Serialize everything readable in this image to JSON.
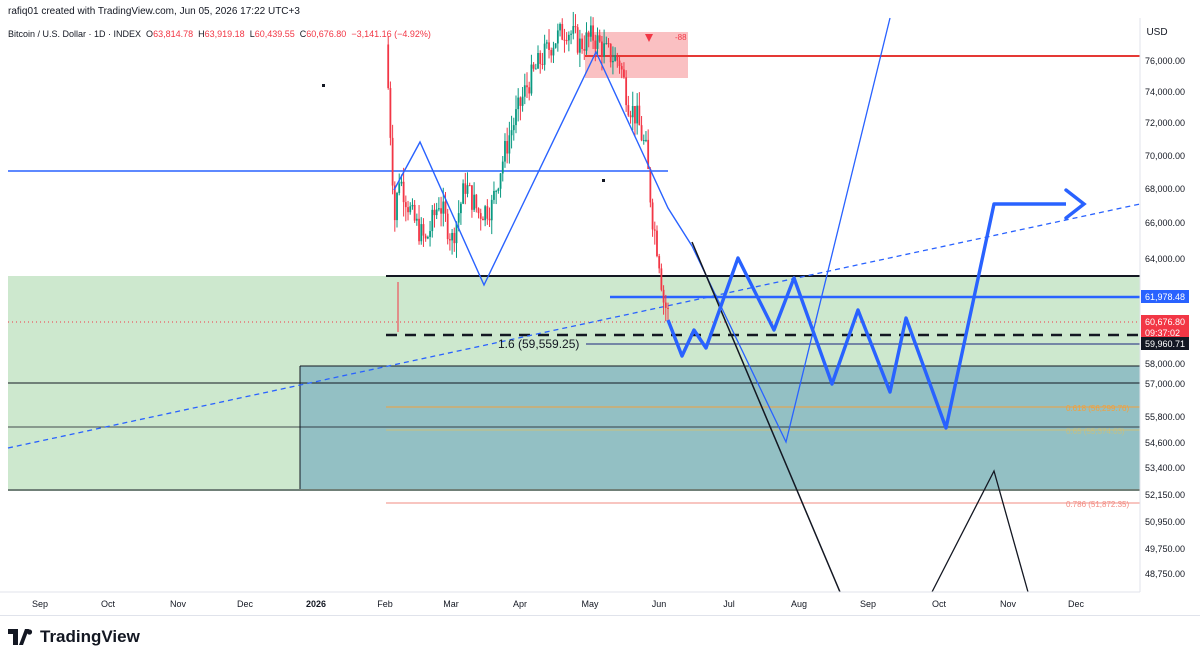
{
  "header": {
    "credit": "rafiq01 created with TradingView.com, Jun 05, 2026 17:22 UTC+3",
    "symbol": "Bitcoin / U.S. Dollar · 1D · INDEX",
    "open_label": "O",
    "open": "63,814.78",
    "high_label": "H",
    "high": "63,919.18",
    "low_label": "L",
    "low": "60,439.55",
    "close_label": "C",
    "close": "60,676.80",
    "change": "−3,141.16 (−4.92%)"
  },
  "price_axis": {
    "currency": "USD",
    "ticks": [
      "76,000.00",
      "74,000.00",
      "72,000.00",
      "70,000.00",
      "68,000.00",
      "66,000.00",
      "64,000.00",
      "58,000.00",
      "57,000.00",
      "55,800.00",
      "54,600.00",
      "53,400.00",
      "52,150.00",
      "50,950.00",
      "49,750.00",
      "48,750.00"
    ]
  },
  "time_axis": {
    "ticks": [
      "Sep",
      "Oct",
      "Nov",
      "Dec",
      "2026",
      "Feb",
      "Mar",
      "Apr",
      "May",
      "Jun",
      "Jul",
      "Aug",
      "Sep",
      "Oct",
      "Nov",
      "Dec"
    ]
  },
  "price_labels": {
    "level_1": "61,978.48",
    "last_price": "60,676.80",
    "countdown": "09:37:02",
    "level_2": "59,960.71"
  },
  "annotations": {
    "fib_ext": "1.6 (59,559.25)",
    "fib_618": "0.618 (56,299.76)",
    "fib_786": "0.786 (51,872.35)",
    "fib_hidden": "0.65 (55,374.03)",
    "marker": "-88"
  },
  "colors": {
    "up": "#089981",
    "down": "#f23645",
    "projection": "#2962ff",
    "zone_green": "#c8e6c9",
    "zone_teal": "#7fb3c0"
  },
  "brand": {
    "name": "TradingView"
  },
  "chart_data": {
    "type": "candlestick",
    "title": "",
    "ylim": [
      48000,
      77500
    ],
    "x_categories": [
      "Sep",
      "Oct",
      "Nov",
      "Dec",
      "2026",
      "Feb",
      "Mar",
      "Apr",
      "May",
      "Jun",
      "Jul",
      "Aug",
      "Sep",
      "Oct",
      "Nov",
      "Dec"
    ],
    "last_close": 60676.8,
    "horizontal_levels": [
      {
        "value": 76200,
        "color": "red"
      },
      {
        "value": 69200,
        "color": "blue"
      },
      {
        "value": 63000,
        "color": "black"
      },
      {
        "value": 61978.48,
        "color": "blue"
      },
      {
        "value": 59960.71,
        "color": "navy"
      },
      {
        "value": 59559.25,
        "color": "black-dashed"
      },
      {
        "value": 56299.76,
        "color": "orange"
      },
      {
        "value": 51872.35,
        "color": "red"
      }
    ],
    "candles_source": "Feb–Jun 2026 daily, ~130 candles from ~77,000 high down to ~59,500 low"
  }
}
